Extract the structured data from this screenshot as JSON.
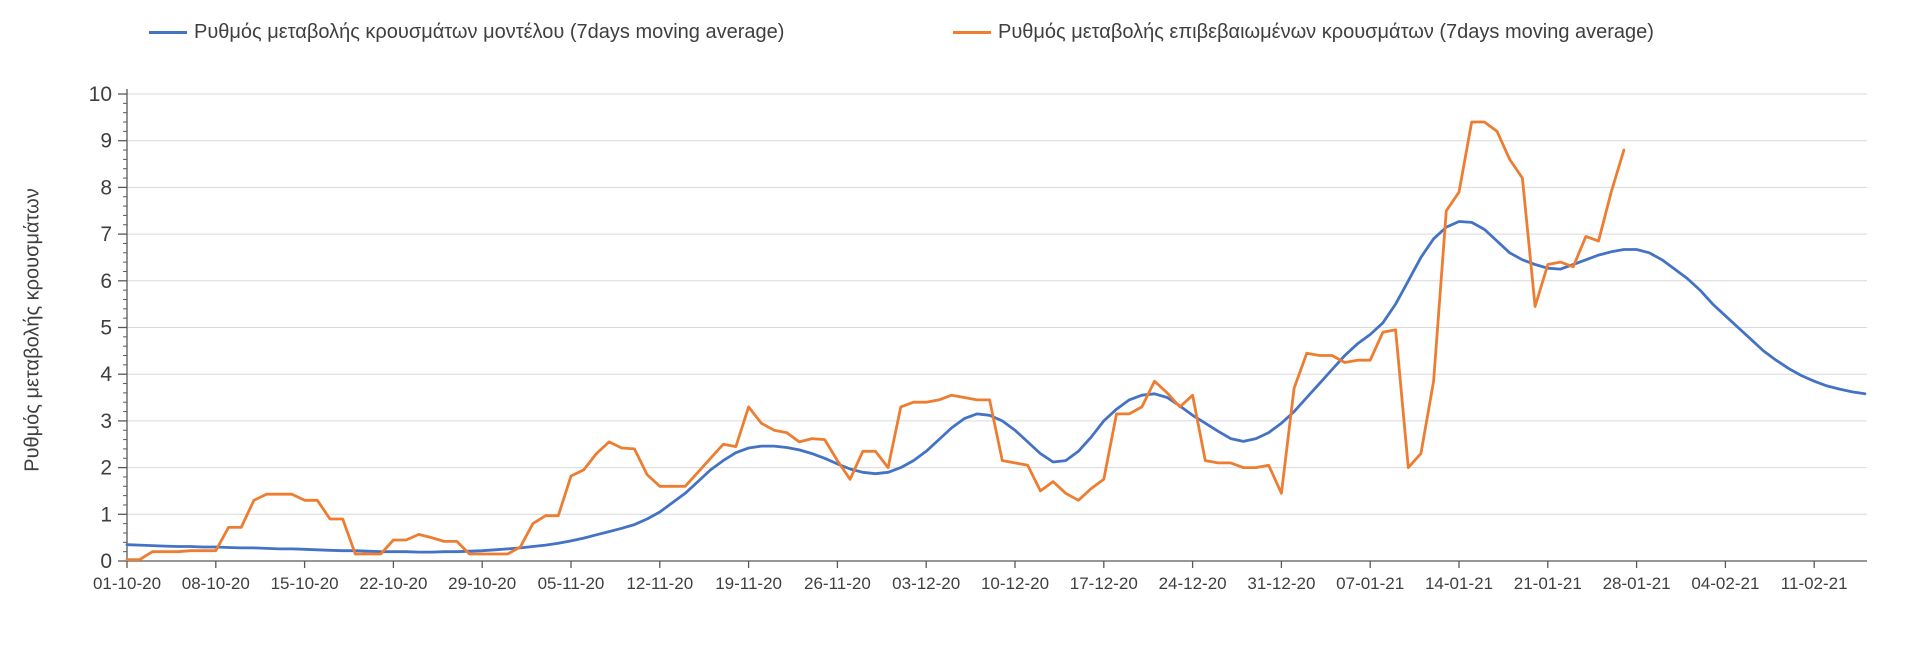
{
  "chart_data": {
    "type": "line",
    "title": "",
    "xlabel": "",
    "ylabel": "Ρυθμός μεταβολής κρουσμάτων",
    "ylim": [
      0,
      10
    ],
    "y_ticks": [
      0,
      1,
      2,
      3,
      4,
      5,
      6,
      7,
      8,
      9,
      10
    ],
    "y_minor_tick_step": 0.2,
    "grid": "horizontal",
    "legend_position": "top",
    "x_tick_labels": [
      "01-10-20",
      "08-10-20",
      "15-10-20",
      "22-10-20",
      "29-10-20",
      "05-11-20",
      "12-11-20",
      "19-11-20",
      "26-11-20",
      "03-12-20",
      "10-12-20",
      "17-12-20",
      "24-12-20",
      "31-12-20",
      "07-01-21",
      "14-01-21",
      "21-01-21",
      "28-01-21",
      "04-02-21",
      "11-02-21"
    ],
    "x_start_date": "01-10-20",
    "x_frequency": "daily",
    "colors": {
      "grid": "#d9d9d9",
      "axis": "#595959",
      "text": "#3f3f3f"
    },
    "series": [
      {
        "name": "Ρυθμός μεταβολής κρουσμάτων μοντέλου (7days moving average)",
        "color": "#4472C4",
        "values": [
          0.35,
          0.34,
          0.33,
          0.32,
          0.31,
          0.31,
          0.3,
          0.3,
          0.29,
          0.28,
          0.28,
          0.27,
          0.26,
          0.26,
          0.25,
          0.24,
          0.23,
          0.22,
          0.22,
          0.21,
          0.2,
          0.2,
          0.2,
          0.19,
          0.19,
          0.2,
          0.2,
          0.21,
          0.22,
          0.24,
          0.26,
          0.28,
          0.31,
          0.34,
          0.38,
          0.43,
          0.49,
          0.56,
          0.63,
          0.7,
          0.78,
          0.9,
          1.05,
          1.25,
          1.45,
          1.7,
          1.95,
          2.15,
          2.32,
          2.42,
          2.46,
          2.46,
          2.43,
          2.38,
          2.3,
          2.2,
          2.08,
          1.97,
          1.9,
          1.87,
          1.9,
          2.0,
          2.15,
          2.35,
          2.6,
          2.85,
          3.05,
          3.15,
          3.12,
          3.0,
          2.8,
          2.55,
          2.3,
          2.12,
          2.15,
          2.35,
          2.65,
          3.0,
          3.25,
          3.45,
          3.55,
          3.58,
          3.5,
          3.32,
          3.12,
          2.95,
          2.78,
          2.62,
          2.56,
          2.62,
          2.75,
          2.95,
          3.2,
          3.5,
          3.8,
          4.1,
          4.4,
          4.65,
          4.85,
          5.1,
          5.5,
          6.0,
          6.5,
          6.9,
          7.15,
          7.27,
          7.25,
          7.1,
          6.85,
          6.6,
          6.45,
          6.35,
          6.27,
          6.25,
          6.35,
          6.45,
          6.55,
          6.62,
          6.67,
          6.67,
          6.6,
          6.45,
          6.25,
          6.05,
          5.8,
          5.5,
          5.25,
          5.0,
          4.75,
          4.5,
          4.3,
          4.12,
          3.97,
          3.85,
          3.75,
          3.68,
          3.62,
          3.58
        ]
      },
      {
        "name": "Ρυθμός μεταβολής επιβεβαιωμένων κρουσμάτων (7days moving average)",
        "color": "#ED7D31",
        "values": [
          0.03,
          0.03,
          0.2,
          0.2,
          0.2,
          0.22,
          0.22,
          0.22,
          0.72,
          0.72,
          1.3,
          1.43,
          1.43,
          1.43,
          1.3,
          1.3,
          0.9,
          0.9,
          0.15,
          0.15,
          0.15,
          0.45,
          0.45,
          0.57,
          0.5,
          0.42,
          0.42,
          0.15,
          0.15,
          0.15,
          0.15,
          0.3,
          0.8,
          0.97,
          0.97,
          1.82,
          1.95,
          2.3,
          2.55,
          2.42,
          2.4,
          1.85,
          1.6,
          1.6,
          1.6,
          1.9,
          2.2,
          2.5,
          2.45,
          3.3,
          2.95,
          2.8,
          2.75,
          2.55,
          2.62,
          2.6,
          2.15,
          1.75,
          2.35,
          2.35,
          2.0,
          3.3,
          3.4,
          3.4,
          3.45,
          3.55,
          3.5,
          3.45,
          3.45,
          2.15,
          2.1,
          2.05,
          1.5,
          1.7,
          1.45,
          1.3,
          1.55,
          1.75,
          3.15,
          3.15,
          3.3,
          3.85,
          3.6,
          3.3,
          3.55,
          2.15,
          2.1,
          2.1,
          2.0,
          2.0,
          2.05,
          1.45,
          3.7,
          4.45,
          4.4,
          4.4,
          4.25,
          4.3,
          4.3,
          4.9,
          4.95,
          2.0,
          2.3,
          3.85,
          7.5,
          7.9,
          9.4,
          9.4,
          9.2,
          8.6,
          8.2,
          5.45,
          6.35,
          6.4,
          6.3,
          6.95,
          6.85,
          7.9,
          8.8
        ]
      }
    ]
  }
}
